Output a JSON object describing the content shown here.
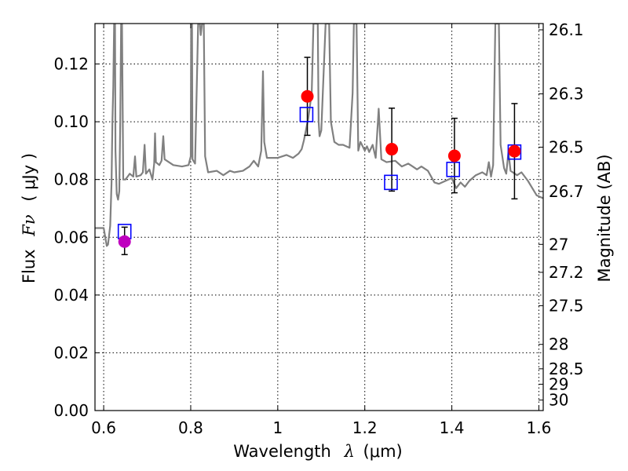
{
  "chart_data": {
    "type": "scatter",
    "xlabel": "Wavelength",
    "xlabel_symbol": "λ",
    "xlabel_unit": "(μm)",
    "ylabel": "Flux",
    "ylabel_symbol": "Fν",
    "ylabel_unit": "( μJy )",
    "right_ylabel": "Magnitude (AB)",
    "xlim": [
      0.58,
      1.61
    ],
    "ylim": [
      0.0,
      0.134
    ],
    "grid": true,
    "x_ticks": [
      {
        "value": 0.6,
        "label": "0.6"
      },
      {
        "value": 0.8,
        "label": "0.8"
      },
      {
        "value": 1.0,
        "label": "1"
      },
      {
        "value": 1.2,
        "label": "1.2"
      },
      {
        "value": 1.4,
        "label": "1.4"
      },
      {
        "value": 1.6,
        "label": "1.6"
      }
    ],
    "y_ticks": [
      {
        "value": 0.0,
        "label": "0.00"
      },
      {
        "value": 0.02,
        "label": "0.02"
      },
      {
        "value": 0.04,
        "label": "0.04"
      },
      {
        "value": 0.06,
        "label": "0.06"
      },
      {
        "value": 0.08,
        "label": "0.08"
      },
      {
        "value": 0.1,
        "label": "0.10"
      },
      {
        "value": 0.12,
        "label": "0.12"
      }
    ],
    "right_ticks": [
      {
        "mag": 26.1,
        "label": "26.1"
      },
      {
        "mag": 26.3,
        "label": "26.3"
      },
      {
        "mag": 26.5,
        "label": "26.5"
      },
      {
        "mag": 26.7,
        "label": "26.7"
      },
      {
        "mag": 27.0,
        "label": "27"
      },
      {
        "mag": 27.2,
        "label": "27.2"
      },
      {
        "mag": 27.5,
        "label": "27.5"
      },
      {
        "mag": 28.0,
        "label": "28"
      },
      {
        "mag": 28.5,
        "label": "28.5"
      },
      {
        "mag": 29.0,
        "label": "29"
      },
      {
        "mag": 30.0,
        "label": "30"
      }
    ],
    "observed_points": [
      {
        "x": 0.648,
        "y": 0.0585,
        "yerr_low": 0.0045,
        "yerr_high": 0.005,
        "color": "#bf00bf"
      },
      {
        "x": 1.068,
        "y": 0.1088,
        "yerr_low": 0.0135,
        "yerr_high": 0.0135,
        "color": "#ff0000"
      },
      {
        "x": 1.262,
        "y": 0.0905,
        "yerr_low": 0.0145,
        "yerr_high": 0.0142,
        "color": "#ff0000"
      },
      {
        "x": 1.406,
        "y": 0.0882,
        "yerr_low": 0.0128,
        "yerr_high": 0.013,
        "color": "#ff0000"
      },
      {
        "x": 1.544,
        "y": 0.0898,
        "yerr_low": 0.0165,
        "yerr_high": 0.0165,
        "color": "#ff0000"
      }
    ],
    "model_points": [
      {
        "x": 0.648,
        "y": 0.062
      },
      {
        "x": 1.066,
        "y": 0.1025
      },
      {
        "x": 1.26,
        "y": 0.079
      },
      {
        "x": 1.403,
        "y": 0.0835
      },
      {
        "x": 1.544,
        "y": 0.0895
      }
    ],
    "spectrum": [
      [
        0.58,
        0.0632
      ],
      [
        0.6,
        0.0632
      ],
      [
        0.603,
        0.0605
      ],
      [
        0.607,
        0.057
      ],
      [
        0.61,
        0.0575
      ],
      [
        0.615,
        0.064
      ],
      [
        0.618,
        0.079
      ],
      [
        0.62,
        0.1
      ],
      [
        0.622,
        0.112
      ],
      [
        0.624,
        0.134
      ],
      [
        0.626,
        0.134
      ],
      [
        0.627,
        0.09
      ],
      [
        0.63,
        0.075
      ],
      [
        0.633,
        0.073
      ],
      [
        0.636,
        0.076
      ],
      [
        0.638,
        0.1
      ],
      [
        0.64,
        0.134
      ],
      [
        0.642,
        0.134
      ],
      [
        0.645,
        0.08
      ],
      [
        0.65,
        0.08
      ],
      [
        0.655,
        0.081
      ],
      [
        0.66,
        0.082
      ],
      [
        0.668,
        0.081
      ],
      [
        0.672,
        0.088
      ],
      [
        0.675,
        0.081
      ],
      [
        0.685,
        0.0815
      ],
      [
        0.69,
        0.0825
      ],
      [
        0.694,
        0.092
      ],
      [
        0.697,
        0.082
      ],
      [
        0.705,
        0.0835
      ],
      [
        0.712,
        0.08
      ],
      [
        0.716,
        0.0855
      ],
      [
        0.718,
        0.096
      ],
      [
        0.72,
        0.086
      ],
      [
        0.728,
        0.085
      ],
      [
        0.733,
        0.0865
      ],
      [
        0.737,
        0.095
      ],
      [
        0.74,
        0.087
      ],
      [
        0.76,
        0.085
      ],
      [
        0.78,
        0.0845
      ],
      [
        0.795,
        0.085
      ],
      [
        0.8,
        0.088
      ],
      [
        0.801,
        0.134
      ],
      [
        0.803,
        0.134
      ],
      [
        0.804,
        0.087
      ],
      [
        0.81,
        0.0855
      ],
      [
        0.815,
        0.12
      ],
      [
        0.817,
        0.134
      ],
      [
        0.821,
        0.134
      ],
      [
        0.823,
        0.13
      ],
      [
        0.826,
        0.134
      ],
      [
        0.83,
        0.134
      ],
      [
        0.833,
        0.088
      ],
      [
        0.84,
        0.0825
      ],
      [
        0.86,
        0.083
      ],
      [
        0.875,
        0.0815
      ],
      [
        0.89,
        0.083
      ],
      [
        0.9,
        0.0825
      ],
      [
        0.92,
        0.083
      ],
      [
        0.935,
        0.0845
      ],
      [
        0.945,
        0.0865
      ],
      [
        0.955,
        0.0845
      ],
      [
        0.962,
        0.09
      ],
      [
        0.966,
        0.1175
      ],
      [
        0.969,
        0.093
      ],
      [
        0.975,
        0.0875
      ],
      [
        1.0,
        0.0875
      ],
      [
        1.02,
        0.0885
      ],
      [
        1.035,
        0.0875
      ],
      [
        1.048,
        0.089
      ],
      [
        1.055,
        0.0905
      ],
      [
        1.06,
        0.0935
      ],
      [
        1.07,
        0.101
      ],
      [
        1.078,
        0.11
      ],
      [
        1.082,
        0.134
      ],
      [
        1.092,
        0.134
      ],
      [
        1.094,
        0.1
      ],
      [
        1.096,
        0.095
      ],
      [
        1.1,
        0.097
      ],
      [
        1.11,
        0.134
      ],
      [
        1.118,
        0.134
      ],
      [
        1.122,
        0.1
      ],
      [
        1.13,
        0.093
      ],
      [
        1.14,
        0.092
      ],
      [
        1.15,
        0.092
      ],
      [
        1.165,
        0.091
      ],
      [
        1.172,
        0.11
      ],
      [
        1.175,
        0.134
      ],
      [
        1.181,
        0.134
      ],
      [
        1.185,
        0.09
      ],
      [
        1.19,
        0.093
      ],
      [
        1.2,
        0.09
      ],
      [
        1.205,
        0.0915
      ],
      [
        1.21,
        0.0895
      ],
      [
        1.218,
        0.092
      ],
      [
        1.225,
        0.0875
      ],
      [
        1.232,
        0.1045
      ],
      [
        1.238,
        0.087
      ],
      [
        1.25,
        0.086
      ],
      [
        1.27,
        0.0865
      ],
      [
        1.285,
        0.0845
      ],
      [
        1.3,
        0.0855
      ],
      [
        1.31,
        0.0845
      ],
      [
        1.32,
        0.0835
      ],
      [
        1.33,
        0.0845
      ],
      [
        1.345,
        0.083
      ],
      [
        1.36,
        0.079
      ],
      [
        1.37,
        0.0785
      ],
      [
        1.385,
        0.0795
      ],
      [
        1.4,
        0.0805
      ],
      [
        1.41,
        0.077
      ],
      [
        1.42,
        0.079
      ],
      [
        1.43,
        0.0775
      ],
      [
        1.44,
        0.0795
      ],
      [
        1.455,
        0.0815
      ],
      [
        1.47,
        0.0825
      ],
      [
        1.48,
        0.0815
      ],
      [
        1.485,
        0.086
      ],
      [
        1.49,
        0.081
      ],
      [
        1.495,
        0.085
      ],
      [
        1.5,
        0.134
      ],
      [
        1.508,
        0.134
      ],
      [
        1.512,
        0.092
      ],
      [
        1.52,
        0.084
      ],
      [
        1.525,
        0.082
      ],
      [
        1.53,
        0.0895
      ],
      [
        1.535,
        0.083
      ],
      [
        1.55,
        0.0815
      ],
      [
        1.56,
        0.0825
      ],
      [
        1.575,
        0.0795
      ],
      [
        1.585,
        0.077
      ],
      [
        1.595,
        0.0745
      ],
      [
        1.61,
        0.0735
      ]
    ]
  }
}
